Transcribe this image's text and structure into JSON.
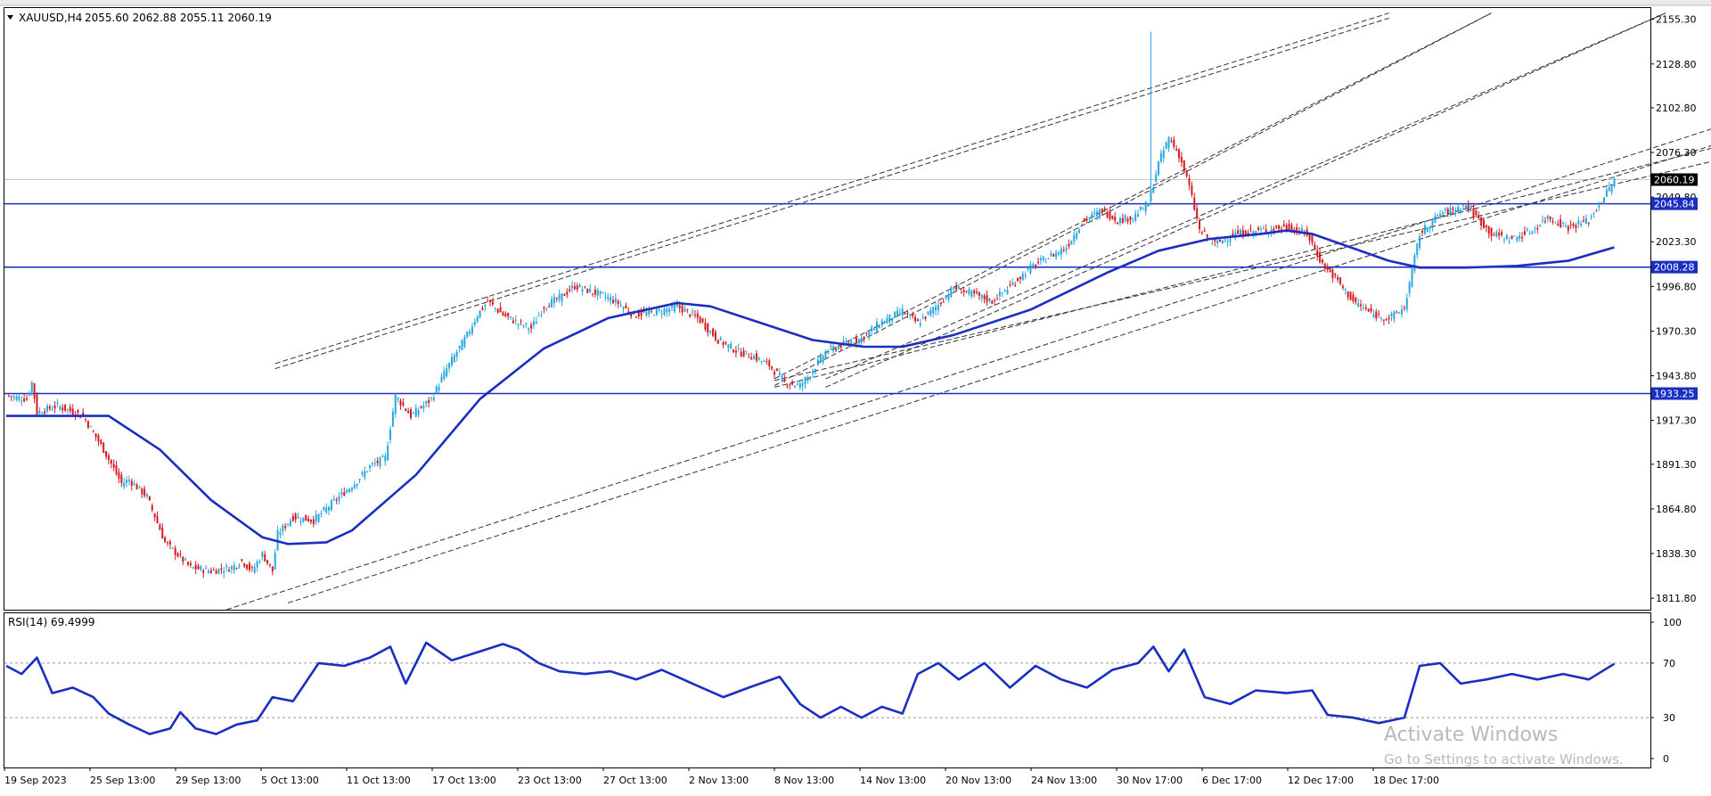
{
  "header": {
    "symbol_label": "XAUUSD,H4",
    "ohlc_text": "2055.60 2062.88 2055.11 2060.19"
  },
  "colors": {
    "bull": "#26a7e1",
    "bear": "#d5191e",
    "ma": "#1a2fc2",
    "hline": "#1a2fc2",
    "channel": "#333333",
    "rsi": "#1a2fc2"
  },
  "price_labels": {
    "current": "2060.19",
    "level_1": "2045.84",
    "level_2": "2008.28",
    "level_3": "1933.25"
  },
  "rsi_panel": {
    "label": "RSI(14) 69.4999"
  },
  "watermark": {
    "line1": "Activate Windows",
    "line2": "Go to Settings to activate Windows."
  },
  "chart_data": [
    {
      "type": "candlestick",
      "title": "XAUUSD,H4",
      "timeframe": "H4",
      "ohlc_last": {
        "open": 2055.6,
        "high": 2062.88,
        "low": 2055.11,
        "close": 2060.19
      },
      "ylim": [
        1805,
        2162
      ],
      "y_ticks": [
        1811.8,
        1838.3,
        1864.8,
        1891.3,
        1917.3,
        1943.8,
        1970.3,
        1996.8,
        2023.3,
        2049.8,
        2076.3,
        2102.8,
        2128.8,
        2155.3
      ],
      "x_ticks": [
        "19 Sep 2023",
        "25 Sep 13:00",
        "29 Sep 13:00",
        "5 Oct 13:00",
        "11 Oct 13:00",
        "17 Oct 13:00",
        "23 Oct 13:00",
        "27 Oct 13:00",
        "2 Nov 13:00",
        "8 Nov 13:00",
        "14 Nov 13:00",
        "20 Nov 13:00",
        "24 Nov 13:00",
        "30 Nov 17:00",
        "6 Dec 17:00",
        "12 Dec 17:00",
        "18 Dec 17:00"
      ],
      "close_path": [
        [
          0,
          1932
        ],
        [
          8,
          1930
        ],
        [
          10,
          1940
        ],
        [
          12,
          1922
        ],
        [
          20,
          1926
        ],
        [
          30,
          1920
        ],
        [
          38,
          1900
        ],
        [
          45,
          1880
        ],
        [
          48,
          1882
        ],
        [
          55,
          1872
        ],
        [
          62,
          1845
        ],
        [
          72,
          1830
        ],
        [
          80,
          1828
        ],
        [
          88,
          1830
        ],
        [
          92,
          1834
        ],
        [
          96,
          1828
        ],
        [
          100,
          1838
        ],
        [
          104,
          1828
        ],
        [
          106,
          1850
        ],
        [
          112,
          1860
        ],
        [
          120,
          1858
        ],
        [
          130,
          1872
        ],
        [
          136,
          1880
        ],
        [
          142,
          1890
        ],
        [
          148,
          1895
        ],
        [
          152,
          1932
        ],
        [
          158,
          1920
        ],
        [
          166,
          1930
        ],
        [
          172,
          1948
        ],
        [
          180,
          1968
        ],
        [
          184,
          1980
        ],
        [
          188,
          1988
        ],
        [
          194,
          1980
        ],
        [
          200,
          1975
        ],
        [
          205,
          1972
        ],
        [
          210,
          1985
        ],
        [
          216,
          1990
        ],
        [
          222,
          1997
        ],
        [
          232,
          1992
        ],
        [
          238,
          1988
        ],
        [
          245,
          1980
        ],
        [
          255,
          1982
        ],
        [
          262,
          1985
        ],
        [
          270,
          1978
        ],
        [
          278,
          1965
        ],
        [
          286,
          1958
        ],
        [
          292,
          1955
        ],
        [
          298,
          1950
        ],
        [
          304,
          1940
        ],
        [
          310,
          1938
        ],
        [
          314,
          1945
        ],
        [
          320,
          1958
        ],
        [
          326,
          1962
        ],
        [
          334,
          1966
        ],
        [
          342,
          1976
        ],
        [
          350,
          1982
        ],
        [
          356,
          1975
        ],
        [
          364,
          1986
        ],
        [
          370,
          1996
        ],
        [
          378,
          1992
        ],
        [
          385,
          1988
        ],
        [
          392,
          1997
        ],
        [
          400,
          2008
        ],
        [
          408,
          2015
        ],
        [
          414,
          2020
        ],
        [
          420,
          2035
        ],
        [
          428,
          2042
        ],
        [
          434,
          2036
        ],
        [
          440,
          2038
        ],
        [
          446,
          2046
        ],
        [
          450,
          2070
        ],
        [
          454,
          2085
        ],
        [
          458,
          2075
        ],
        [
          462,
          2056
        ],
        [
          466,
          2030
        ],
        [
          472,
          2022
        ],
        [
          480,
          2028
        ],
        [
          490,
          2030
        ],
        [
          500,
          2032
        ],
        [
          508,
          2028
        ],
        [
          514,
          2010
        ],
        [
          520,
          2000
        ],
        [
          526,
          1988
        ],
        [
          534,
          1980
        ],
        [
          540,
          1978
        ],
        [
          546,
          1984
        ],
        [
          552,
          2028
        ],
        [
          560,
          2040
        ],
        [
          570,
          2045
        ],
        [
          580,
          2028
        ],
        [
          588,
          2025
        ],
        [
          596,
          2030
        ],
        [
          602,
          2038
        ],
        [
          610,
          2032
        ],
        [
          618,
          2036
        ],
        [
          624,
          2050
        ],
        [
          628,
          2060
        ]
      ],
      "moving_average": [
        [
          0,
          1920
        ],
        [
          40,
          1920
        ],
        [
          60,
          1900
        ],
        [
          80,
          1870
        ],
        [
          100,
          1848
        ],
        [
          110,
          1844
        ],
        [
          125,
          1845
        ],
        [
          135,
          1852
        ],
        [
          160,
          1885
        ],
        [
          185,
          1930
        ],
        [
          210,
          1960
        ],
        [
          235,
          1978
        ],
        [
          250,
          1983
        ],
        [
          262,
          1987
        ],
        [
          275,
          1985
        ],
        [
          295,
          1975
        ],
        [
          315,
          1965
        ],
        [
          335,
          1961
        ],
        [
          350,
          1961
        ],
        [
          370,
          1968
        ],
        [
          400,
          1983
        ],
        [
          430,
          2005
        ],
        [
          450,
          2018
        ],
        [
          470,
          2025
        ],
        [
          490,
          2028
        ],
        [
          500,
          2030
        ],
        [
          510,
          2028
        ],
        [
          525,
          2020
        ],
        [
          540,
          2012
        ],
        [
          552,
          2008
        ],
        [
          570,
          2008
        ],
        [
          590,
          2009
        ],
        [
          610,
          2012
        ],
        [
          628,
          2020
        ]
      ],
      "horizontal_levels": [
        2045.84,
        2008.28,
        1933.25
      ],
      "current_price": 2060.19,
      "trend_channels": [
        {
          "from": [
            105,
            1951
          ],
          "to": [
            540,
            2159
          ]
        },
        {
          "from": [
            105,
            1948
          ],
          "to": [
            540,
            2156
          ]
        },
        {
          "from": [
            86,
            1805
          ],
          "to": [
            700,
            2107
          ]
        },
        {
          "from": [
            110,
            1809
          ],
          "to": [
            700,
            2097
          ]
        },
        {
          "from": [
            300,
            1938
          ],
          "to": [
            580,
            2159
          ]
        },
        {
          "from": [
            300,
            1942
          ],
          "to": [
            580,
            2159
          ]
        },
        {
          "from": [
            320,
            1937
          ],
          "to": [
            648,
            2159
          ]
        },
        {
          "from": [
            320,
            1942
          ],
          "to": [
            648,
            2159
          ]
        },
        {
          "from": [
            300,
            1937
          ],
          "to": [
            700,
            2092
          ]
        },
        {
          "from": [
            300,
            1941
          ],
          "to": [
            700,
            2083
          ]
        }
      ]
    },
    {
      "type": "line",
      "title": "RSI(14) 69.4999",
      "ylim": [
        0,
        100
      ],
      "y_ticks": [
        0,
        30,
        70,
        100
      ],
      "levels": [
        30,
        70
      ],
      "last_value": 69.4999,
      "series": [
        {
          "values": [
            [
              0,
              68
            ],
            [
              6,
              62
            ],
            [
              12,
              74
            ],
            [
              18,
              48
            ],
            [
              26,
              52
            ],
            [
              34,
              45
            ],
            [
              40,
              33
            ],
            [
              48,
              25
            ],
            [
              56,
              18
            ],
            [
              64,
              22
            ],
            [
              68,
              34
            ],
            [
              74,
              22
            ],
            [
              82,
              18
            ],
            [
              90,
              25
            ],
            [
              98,
              28
            ],
            [
              104,
              45
            ],
            [
              112,
              42
            ],
            [
              122,
              70
            ],
            [
              132,
              68
            ],
            [
              142,
              74
            ],
            [
              150,
              82
            ],
            [
              156,
              55
            ],
            [
              164,
              85
            ],
            [
              174,
              72
            ],
            [
              184,
              78
            ],
            [
              194,
              84
            ],
            [
              200,
              80
            ],
            [
              208,
              70
            ],
            [
              216,
              64
            ],
            [
              226,
              62
            ],
            [
              236,
              64
            ],
            [
              246,
              58
            ],
            [
              256,
              65
            ],
            [
              268,
              55
            ],
            [
              280,
              45
            ],
            [
              290,
              52
            ],
            [
              302,
              60
            ],
            [
              310,
              40
            ],
            [
              318,
              30
            ],
            [
              326,
              38
            ],
            [
              334,
              30
            ],
            [
              342,
              38
            ],
            [
              350,
              33
            ],
            [
              356,
              62
            ],
            [
              364,
              70
            ],
            [
              372,
              58
            ],
            [
              382,
              70
            ],
            [
              392,
              52
            ],
            [
              402,
              68
            ],
            [
              412,
              58
            ],
            [
              422,
              52
            ],
            [
              432,
              65
            ],
            [
              442,
              70
            ],
            [
              448,
              82
            ],
            [
              454,
              64
            ],
            [
              460,
              80
            ],
            [
              468,
              45
            ],
            [
              478,
              40
            ],
            [
              488,
              50
            ],
            [
              500,
              48
            ],
            [
              510,
              50
            ],
            [
              516,
              32
            ],
            [
              526,
              30
            ],
            [
              536,
              26
            ],
            [
              546,
              30
            ],
            [
              552,
              68
            ],
            [
              560,
              70
            ],
            [
              568,
              55
            ],
            [
              578,
              58
            ],
            [
              588,
              62
            ],
            [
              598,
              58
            ],
            [
              608,
              62
            ],
            [
              618,
              58
            ],
            [
              628,
              69.5
            ]
          ]
        }
      ]
    }
  ]
}
